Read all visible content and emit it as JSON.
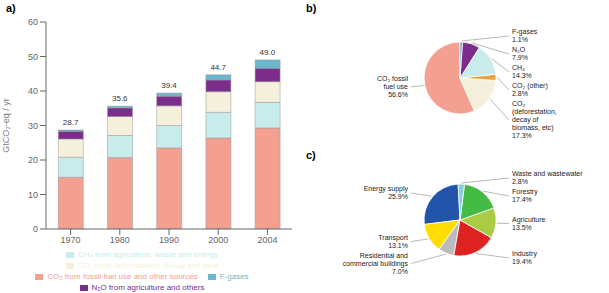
{
  "chart_data": [
    {
      "type": "bar",
      "title": "a)",
      "stacked": true,
      "categories": [
        "1970",
        "1980",
        "1990",
        "2000",
        "2004"
      ],
      "series": [
        {
          "name": "CO₂ from fossil fuel use and other sources",
          "color": "#F4A090",
          "values": [
            15.0,
            20.7,
            23.5,
            26.4,
            29.3
          ]
        },
        {
          "name": "CH₄ from agriculture, waste and energy",
          "color": "#C8ECEC",
          "values": [
            5.8,
            6.4,
            6.5,
            7.4,
            7.4
          ]
        },
        {
          "name": "CO₂ from deforestation, decay and peat",
          "color": "#F5F0DC",
          "values": [
            5.3,
            5.5,
            5.7,
            6.0,
            6.0
          ]
        },
        {
          "name": "N₂O from agriculture and others",
          "color": "#7B2D8B",
          "values": [
            2.2,
            2.5,
            2.8,
            3.4,
            3.9
          ]
        },
        {
          "name": "F-gases",
          "color": "#6BB8CC",
          "values": [
            0.4,
            0.5,
            0.9,
            1.5,
            2.4
          ]
        }
      ],
      "totals": [
        28.7,
        35.6,
        39.4,
        44.7,
        49.0
      ],
      "total_labels": [
        "28.7",
        "35.6",
        "39.4",
        "44.7",
        "49.0"
      ],
      "ylabel": "GtCO₂-eq / yr",
      "ylim": [
        0,
        60
      ],
      "yticks": [
        0,
        10,
        20,
        30,
        40,
        50,
        60
      ],
      "grid": false,
      "legend": "bottom"
    },
    {
      "type": "pie",
      "title": "b)",
      "data_labels": true,
      "categories": [
        "CO₂ fossil\nfuel use",
        "CO₂\n(deforestation,\ndecay of\nbiomass, etc)",
        "CO₂ (other)",
        "CH₄",
        "N₂O",
        "F-gases"
      ],
      "values": [
        56.6,
        17.3,
        2.8,
        14.3,
        7.9,
        1.1
      ],
      "value_labels": [
        "56.6%",
        "17.3%",
        "2.8%",
        "14.3%",
        "7.9%",
        "1.1%"
      ],
      "colors": [
        "#F4A090",
        "#F5F0DC",
        "#E8A040",
        "#C8ECEC",
        "#7B2D8B",
        "#5B9BD5"
      ]
    },
    {
      "type": "pie",
      "title": "c)",
      "data_labels": true,
      "categories": [
        "Energy supply",
        "Transport",
        "Residential and\ncommercial buildings",
        "Industry",
        "Agriculture",
        "Forestry",
        "Waste and wastewater"
      ],
      "values": [
        25.9,
        13.1,
        7.0,
        19.4,
        13.5,
        17.4,
        2.8
      ],
      "value_labels": [
        "25.9%",
        "13.1%",
        "7.0%",
        "19.4%",
        "13.5%",
        "17.4%",
        "2.8%"
      ],
      "colors": [
        "#2255AA",
        "#FFDD00",
        "#BBBBBB",
        "#DD2222",
        "#AACC44",
        "#44BB44",
        "#88CCDD"
      ]
    }
  ]
}
